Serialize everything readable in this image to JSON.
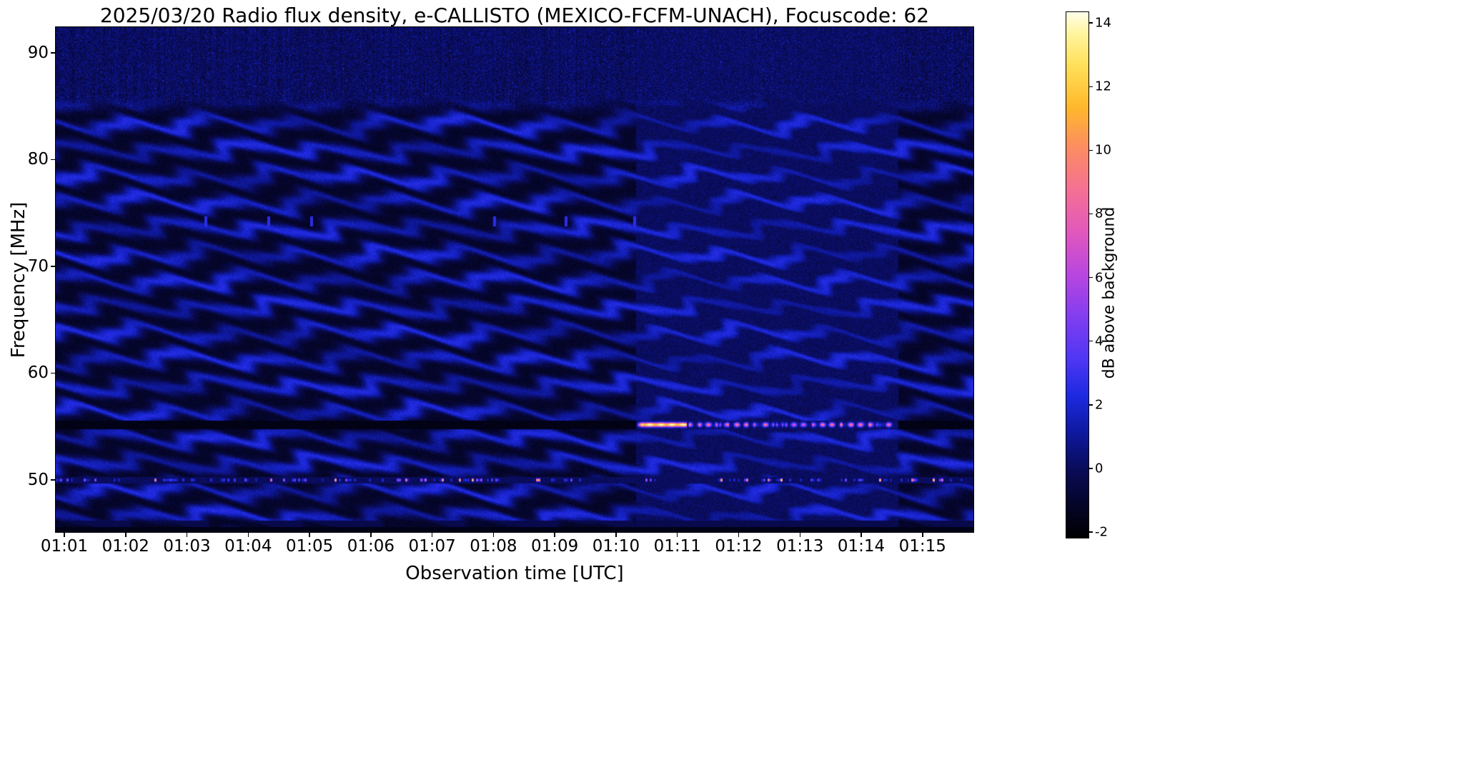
{
  "figure": {
    "background": "#ffffff"
  },
  "chart_data": {
    "type": "heatmap",
    "title": "2025/03/20  Radio flux density, e-CALLISTO (MEXICO-FCFM-UNACH), Focuscode: 62",
    "xlabel": "Observation time [UTC]",
    "ylabel": "Frequency [MHz]",
    "x_tick_labels": [
      "01:01",
      "01:02",
      "01:03",
      "01:04",
      "01:05",
      "01:06",
      "01:07",
      "01:08",
      "01:09",
      "01:10",
      "01:11",
      "01:12",
      "01:13",
      "01:14",
      "01:15"
    ],
    "x_tick_minutes": [
      1,
      2,
      3,
      4,
      5,
      6,
      7,
      8,
      9,
      10,
      11,
      12,
      13,
      14,
      15
    ],
    "x_range_minutes": [
      0.86,
      15.83
    ],
    "y_tick_values": [
      90,
      80,
      70,
      60,
      50
    ],
    "y_range_mhz": [
      45.1,
      92.4
    ],
    "grid": false,
    "colorbar": {
      "label": "dB above background",
      "tick_values": [
        14,
        12,
        10,
        8,
        6,
        4,
        2,
        0,
        -2
      ],
      "value_range": [
        -2.18,
        14.34
      ]
    },
    "colormap": {
      "description": "gnuplot2-like: black - dark blue - blue - violet - magenta - pink - orange - yellow - white",
      "stops": [
        [
          0.0,
          [
            0,
            0,
            3
          ]
        ],
        [
          0.06,
          [
            5,
            5,
            40
          ]
        ],
        [
          0.13,
          [
            10,
            12,
            90
          ]
        ],
        [
          0.2,
          [
            15,
            25,
            160
          ]
        ],
        [
          0.27,
          [
            30,
            42,
            225
          ]
        ],
        [
          0.34,
          [
            80,
            55,
            245
          ]
        ],
        [
          0.42,
          [
            130,
            62,
            240
          ]
        ],
        [
          0.5,
          [
            185,
            70,
            225
          ]
        ],
        [
          0.58,
          [
            225,
            88,
            190
          ]
        ],
        [
          0.66,
          [
            245,
            112,
            150
          ]
        ],
        [
          0.74,
          [
            252,
            140,
            100
          ]
        ],
        [
          0.82,
          [
            255,
            185,
            45
          ]
        ],
        [
          0.9,
          [
            255,
            225,
            90
          ]
        ],
        [
          0.96,
          [
            255,
            245,
            160
          ]
        ],
        [
          1.0,
          [
            255,
            255,
            235
          ]
        ]
      ]
    },
    "features": [
      {
        "name": "interference-ripple-bands",
        "freq_range_mhz": [
          45.1,
          85.5
        ],
        "band_spacing_mhz": 2.45,
        "typical_db": [
          -1.2,
          3.0
        ],
        "description": "slowly undulating horizontal fringe pattern over whole record"
      },
      {
        "name": "noise-region",
        "freq_range_mhz": [
          85.5,
          92.4
        ],
        "typical_db": [
          -1.0,
          2.0
        ],
        "description": "dark speckled noise above ~85 MHz"
      },
      {
        "name": "instrument-gap-55mhz",
        "center_mhz": 55.15,
        "half_width_mhz": 0.42,
        "db": -1.9
      },
      {
        "name": "radio-burst-55mhz",
        "center_mhz": 55.15,
        "sigma_mhz": 0.2,
        "time_range_min": [
          10.33,
          14.6
        ],
        "peak_db": 15,
        "description": "bright narrowband emission: continuous yellow-white 01:10.3-01:11.1, then dashed orange/pink segments until ~01:14.6"
      },
      {
        "name": "rfi-speckles-50mhz",
        "center_mhz": 49.97,
        "sigma_mhz": 0.13,
        "time_range_min": [
          0.86,
          15.83
        ],
        "peak_db": 13,
        "description": "intermittent bright pink/orange dots along 50 MHz channel"
      },
      {
        "name": "bottom-edge-dark-band",
        "freq_range_mhz": [
          45.1,
          46.2
        ],
        "db": -1.8
      }
    ]
  }
}
